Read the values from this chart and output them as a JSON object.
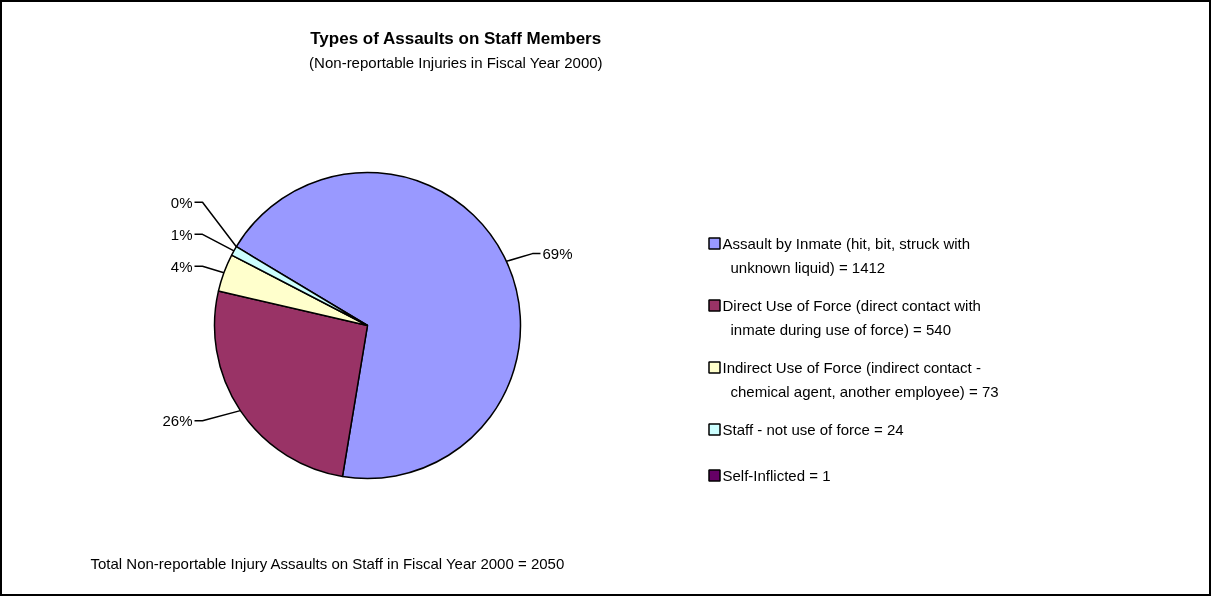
{
  "chart_data": {
    "type": "pie",
    "title": "Types of Assaults on Staff Members",
    "subtitle": "(Non-reportable Injuries in Fiscal Year 2000)",
    "categories": [
      "Assault by Inmate (hit, bit, struck with unknown liquid) = 1412",
      "Direct Use of Force (direct contact with inmate during use of force) = 540",
      "Indirect Use of Force (indirect contact - chemical agent, another employee) = 73",
      "Staff - not use of force = 24",
      "Self-Inflicted = 1"
    ],
    "values": [
      69,
      26,
      4,
      1,
      0
    ],
    "value_labels": [
      "69%",
      "26%",
      "4%",
      "1%",
      "0%"
    ],
    "colors": [
      "#9999ff",
      "#993366",
      "#ffffcc",
      "#ccffff",
      "#660066"
    ],
    "legend": "right",
    "annotations": [
      "Total Non-reportable Injury Assaults on Staff in Fiscal Year 2000 = 2050"
    ]
  }
}
